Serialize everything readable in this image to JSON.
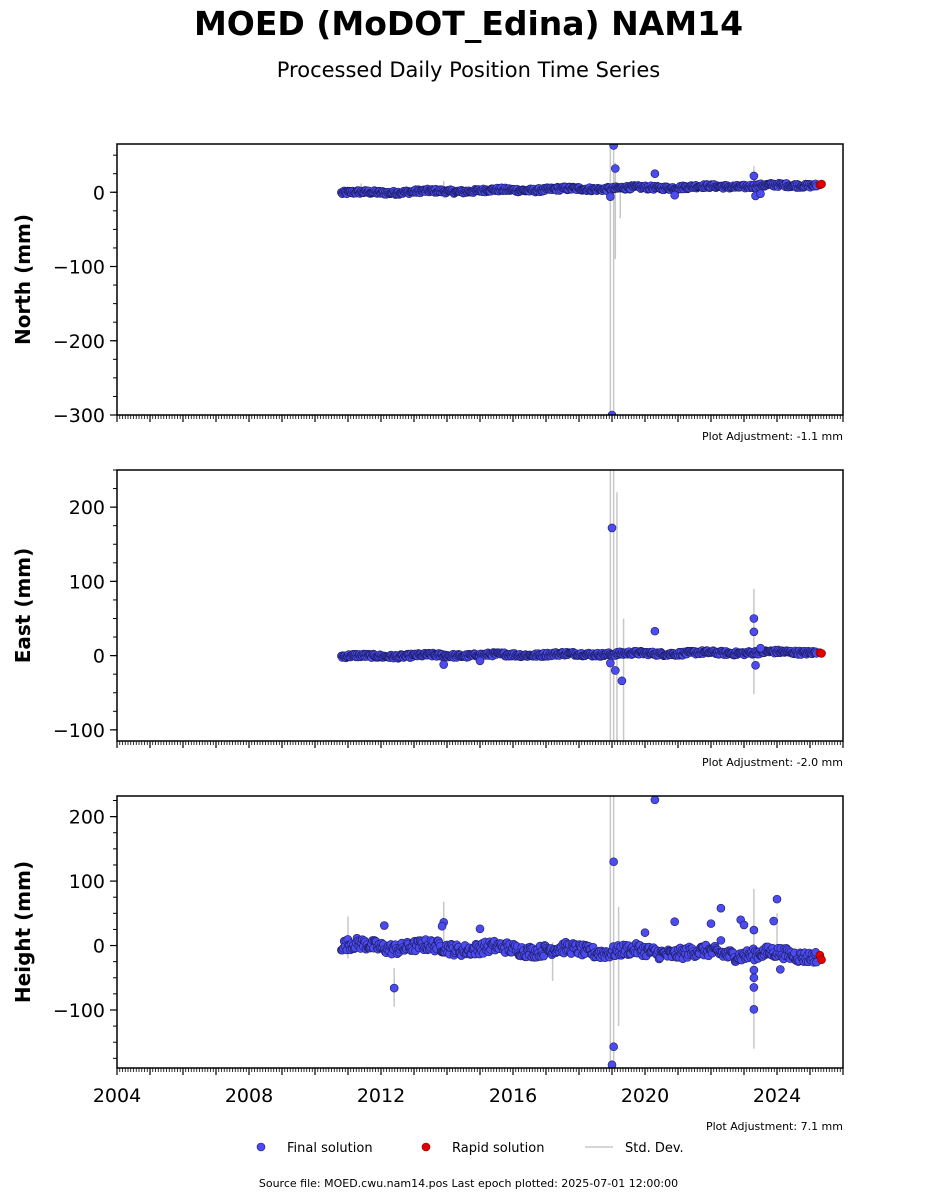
{
  "title": "MOED (MoDOT_Edina) NAM14",
  "subtitle": "Processed Daily Position Time Series",
  "footer": "Source file: MOED.cwu.nam14.pos  Last epoch plotted: 2025-07-01 12:00:00",
  "legend": {
    "final": "Final solution",
    "rapid": "Rapid solution",
    "stddev": "Std. Dev."
  },
  "colors": {
    "final": "#4b4bef",
    "final_edge": "#1a1a5a",
    "rapid": "#e00000",
    "stddev": "#c8c8c8"
  },
  "chart_data": [
    {
      "type": "scatter",
      "ylabel": "North (mm)",
      "xlim": [
        2004,
        2026
      ],
      "ylim": [
        -300,
        65
      ],
      "yticks": [
        0,
        -100,
        -200,
        -300
      ],
      "ytick_labels": [
        "0",
        "−100",
        "−200",
        "−300"
      ],
      "adjustment": "Plot Adjustment: -1.1 mm",
      "trend": {
        "x": [
          2010.8,
          2025.2
        ],
        "y": [
          -1,
          10
        ],
        "noise": 2.5
      },
      "final_points": [
        {
          "x": 2018.95,
          "y": -6
        },
        {
          "x": 2019.05,
          "y": 63
        },
        {
          "x": 2019.1,
          "y": 32
        },
        {
          "x": 2019.0,
          "y": -300
        },
        {
          "x": 2020.3,
          "y": 25
        },
        {
          "x": 2020.9,
          "y": -4
        },
        {
          "x": 2023.3,
          "y": 22
        },
        {
          "x": 2023.35,
          "y": -5
        },
        {
          "x": 2023.5,
          "y": -2
        }
      ],
      "rapid_points": [
        {
          "x": 2025.3,
          "y": 10
        },
        {
          "x": 2025.35,
          "y": 11
        }
      ],
      "error_bars": [
        {
          "x": 2018.95,
          "low": -300,
          "high": 65
        },
        {
          "x": 2019.05,
          "low": -300,
          "high": 65
        },
        {
          "x": 2019.1,
          "low": -90,
          "high": 40
        },
        {
          "x": 2019.25,
          "low": -35,
          "high": 10
        },
        {
          "x": 2023.3,
          "low": -10,
          "high": 35
        },
        {
          "x": 2013.9,
          "low": -8,
          "high": 15
        },
        {
          "x": 2011.4,
          "low": -8,
          "high": 12
        }
      ]
    },
    {
      "type": "scatter",
      "ylabel": "East (mm)",
      "xlim": [
        2004,
        2026
      ],
      "ylim": [
        -115,
        250
      ],
      "yticks": [
        200,
        100,
        0,
        -100
      ],
      "ytick_labels": [
        "200",
        "100",
        "0",
        "−100"
      ],
      "adjustment": "Plot Adjustment: -2.0 mm",
      "trend": {
        "x": [
          2010.8,
          2025.2
        ],
        "y": [
          -1,
          5
        ],
        "noise": 2.5
      },
      "final_points": [
        {
          "x": 2013.9,
          "y": -12
        },
        {
          "x": 2015.0,
          "y": -7
        },
        {
          "x": 2018.95,
          "y": -10
        },
        {
          "x": 2019.0,
          "y": 172
        },
        {
          "x": 2019.1,
          "y": -20
        },
        {
          "x": 2019.3,
          "y": -34
        },
        {
          "x": 2020.3,
          "y": 33
        },
        {
          "x": 2023.3,
          "y": 50
        },
        {
          "x": 2023.3,
          "y": 32
        },
        {
          "x": 2023.35,
          "y": -13
        },
        {
          "x": 2023.5,
          "y": 10
        }
      ],
      "rapid_points": [
        {
          "x": 2025.3,
          "y": 4
        },
        {
          "x": 2025.35,
          "y": 3
        }
      ],
      "error_bars": [
        {
          "x": 2018.95,
          "low": -115,
          "high": 250
        },
        {
          "x": 2019.05,
          "low": -115,
          "high": 250
        },
        {
          "x": 2019.15,
          "low": -115,
          "high": 220
        },
        {
          "x": 2019.35,
          "low": -115,
          "high": 50
        },
        {
          "x": 2023.3,
          "low": -52,
          "high": 90
        }
      ]
    },
    {
      "type": "scatter",
      "ylabel": "Height (mm)",
      "xlim": [
        2004,
        2026
      ],
      "ylim": [
        -190,
        232
      ],
      "yticks": [
        200,
        100,
        0,
        -100
      ],
      "ytick_labels": [
        "200",
        "100",
        "0",
        "−100"
      ],
      "xticks": [
        2004,
        2008,
        2012,
        2016,
        2020,
        2024
      ],
      "xtick_labels": [
        "2004",
        "2008",
        "2012",
        "2016",
        "2020",
        "2024"
      ],
      "adjustment": "Plot Adjustment: 7.1 mm",
      "trend": {
        "x": [
          2010.8,
          2025.2
        ],
        "y": [
          0,
          -15
        ],
        "noise": 9
      },
      "final_points": [
        {
          "x": 2012.1,
          "y": 31
        },
        {
          "x": 2012.4,
          "y": -66
        },
        {
          "x": 2013.9,
          "y": 36
        },
        {
          "x": 2013.85,
          "y": 30
        },
        {
          "x": 2015.0,
          "y": 26
        },
        {
          "x": 2019.05,
          "y": 130
        },
        {
          "x": 2019.05,
          "y": -157
        },
        {
          "x": 2019.0,
          "y": -185
        },
        {
          "x": 2020.3,
          "y": 226
        },
        {
          "x": 2020.0,
          "y": 20
        },
        {
          "x": 2020.9,
          "y": 37
        },
        {
          "x": 2022.3,
          "y": 58
        },
        {
          "x": 2022.0,
          "y": 34
        },
        {
          "x": 2022.3,
          "y": 8
        },
        {
          "x": 2022.9,
          "y": 40
        },
        {
          "x": 2023.0,
          "y": 32
        },
        {
          "x": 2023.3,
          "y": 24
        },
        {
          "x": 2023.3,
          "y": -38
        },
        {
          "x": 2023.3,
          "y": -50
        },
        {
          "x": 2023.3,
          "y": -65
        },
        {
          "x": 2023.3,
          "y": -99
        },
        {
          "x": 2023.9,
          "y": 38
        },
        {
          "x": 2024.0,
          "y": 72
        },
        {
          "x": 2024.1,
          "y": -37
        }
      ],
      "rapid_points": [
        {
          "x": 2025.3,
          "y": -15
        },
        {
          "x": 2025.35,
          "y": -22
        }
      ],
      "error_bars": [
        {
          "x": 2018.95,
          "low": -190,
          "high": 232
        },
        {
          "x": 2019.05,
          "low": -190,
          "high": 232
        },
        {
          "x": 2019.2,
          "low": -125,
          "high": 60
        },
        {
          "x": 2023.3,
          "low": -160,
          "high": 88
        },
        {
          "x": 2012.4,
          "low": -95,
          "high": -35
        },
        {
          "x": 2013.9,
          "low": 5,
          "high": 68
        },
        {
          "x": 2011.0,
          "low": -20,
          "high": 45
        },
        {
          "x": 2017.2,
          "low": -55,
          "high": 5
        },
        {
          "x": 2024.0,
          "low": -20,
          "high": 50
        }
      ]
    }
  ]
}
